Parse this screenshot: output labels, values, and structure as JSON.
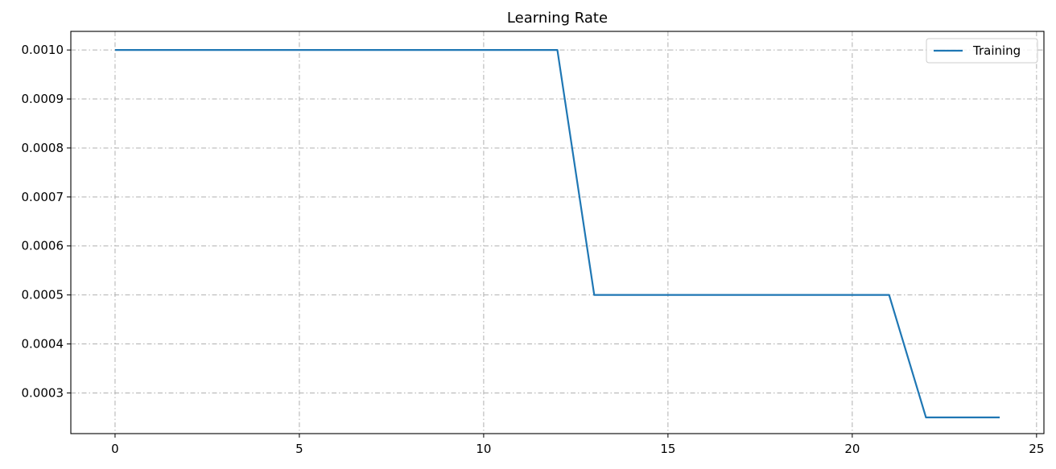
{
  "chart_data": {
    "type": "line",
    "title": "Learning Rate",
    "xlabel": "",
    "ylabel": "",
    "xlim": [
      -1.2,
      25.2
    ],
    "ylim": [
      0.000217,
      0.001038
    ],
    "x_ticks": [
      0,
      5,
      10,
      15,
      20,
      25
    ],
    "x_tick_labels": [
      "0",
      "5",
      "10",
      "15",
      "20",
      "25"
    ],
    "y_ticks": [
      0.0003,
      0.0004,
      0.0005,
      0.0006,
      0.0007,
      0.0008,
      0.0009,
      0.001
    ],
    "y_tick_labels": [
      "0.0003",
      "0.0004",
      "0.0005",
      "0.0006",
      "0.0007",
      "0.0008",
      "0.0009",
      "0.0010"
    ],
    "grid": true,
    "legend_position": "top-right",
    "series": [
      {
        "name": "Training",
        "color": "#1f77b4",
        "x": [
          0,
          1,
          2,
          3,
          4,
          5,
          6,
          7,
          8,
          9,
          10,
          11,
          12,
          13,
          14,
          15,
          16,
          17,
          18,
          19,
          20,
          21,
          22,
          23,
          24
        ],
        "y": [
          0.001,
          0.001,
          0.001,
          0.001,
          0.001,
          0.001,
          0.001,
          0.001,
          0.001,
          0.001,
          0.001,
          0.001,
          0.001,
          0.0005,
          0.0005,
          0.0005,
          0.0005,
          0.0005,
          0.0005,
          0.0005,
          0.0005,
          0.0005,
          0.00025,
          0.00025,
          0.00025
        ]
      }
    ]
  }
}
